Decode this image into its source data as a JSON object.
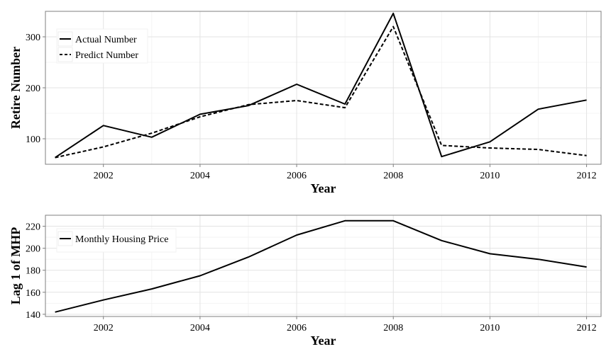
{
  "chart_data": [
    {
      "type": "line",
      "xlabel": "Year",
      "ylabel": "Retire Number",
      "xlim": [
        2000.8,
        2012.3
      ],
      "ylim": [
        50,
        350
      ],
      "x_ticks": [
        2002,
        2004,
        2006,
        2008,
        2010,
        2012
      ],
      "y_ticks": [
        100,
        200,
        300
      ],
      "grid": true,
      "legend_position": "top-left",
      "x": [
        2001,
        2002,
        2003,
        2004,
        2005,
        2006,
        2007,
        2008,
        2009,
        2010,
        2011,
        2012
      ],
      "series": [
        {
          "name": "Actual Number",
          "style": "solid",
          "color": "#000000",
          "values": [
            63,
            126,
            103,
            148,
            165,
            207,
            168,
            346,
            65,
            94,
            158,
            176
          ]
        },
        {
          "name": "Predict Number",
          "style": "dashed",
          "color": "#000000",
          "values": [
            63,
            84,
            111,
            143,
            167,
            175,
            161,
            320,
            87,
            82,
            79,
            67
          ]
        }
      ]
    },
    {
      "type": "line",
      "xlabel": "Year",
      "ylabel": "Lag 1 of MHP",
      "xlim": [
        2000.8,
        2012.3
      ],
      "ylim": [
        138,
        230
      ],
      "x_ticks": [
        2002,
        2004,
        2006,
        2008,
        2010,
        2012
      ],
      "y_ticks": [
        140,
        160,
        180,
        200,
        220
      ],
      "grid": true,
      "legend_position": "top-left",
      "x": [
        2001,
        2002,
        2003,
        2004,
        2005,
        2006,
        2007,
        2008,
        2009,
        2010,
        2011,
        2012
      ],
      "series": [
        {
          "name": "Monthly Housing Price",
          "style": "solid",
          "color": "#000000",
          "values": [
            142,
            153,
            163,
            175,
            192,
            212,
            225,
            225,
            207,
            195,
            190,
            183
          ]
        }
      ]
    }
  ]
}
